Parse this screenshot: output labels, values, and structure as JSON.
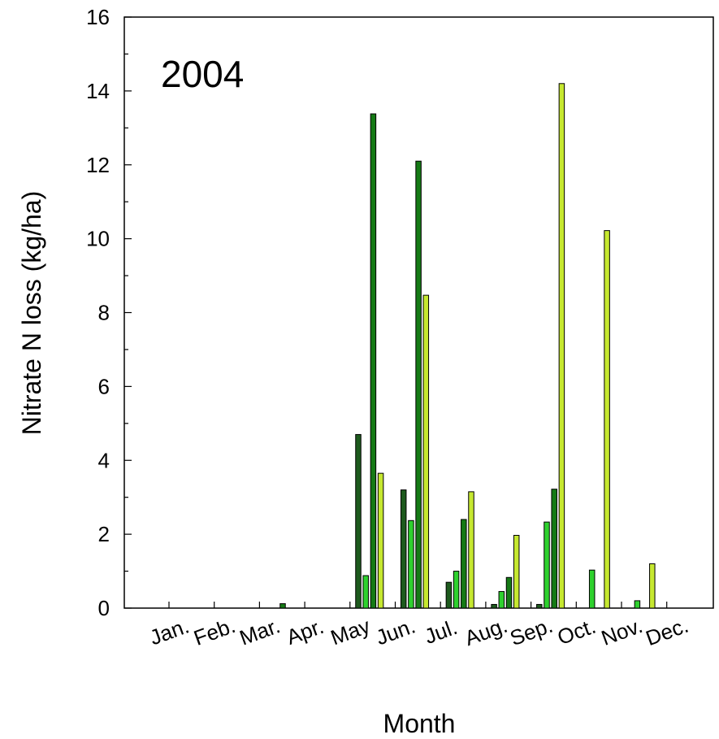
{
  "chart_data": {
    "type": "bar",
    "title": "",
    "annotation": "2004",
    "xlabel": "Month",
    "ylabel": "Nitrate N loss (kg/ha)",
    "ylim": [
      0,
      16
    ],
    "yticks": [
      "0",
      "2",
      "4",
      "6",
      "8",
      "10",
      "12",
      "14",
      "16"
    ],
    "categories": [
      "Jan.",
      "Feb.",
      "Mar.",
      "Apr.",
      "May",
      "Jun.",
      "Jul.",
      "Aug.",
      "Sep.",
      "Oct.",
      "Nov.",
      "Dec."
    ],
    "grid": false,
    "legend": "none",
    "series": [
      {
        "color": "#1d5a1d",
        "values": [
          0,
          0,
          0,
          0,
          4.7,
          3.2,
          0.7,
          0.1,
          0.1,
          0,
          0,
          0
        ]
      },
      {
        "color": "#2ed12e",
        "values": [
          0,
          0,
          0,
          0,
          0.88,
          2.37,
          1.0,
          0.45,
          2.33,
          1.03,
          0.2,
          0
        ]
      },
      {
        "color": "#157a15",
        "values": [
          0,
          0,
          0.12,
          0,
          13.38,
          12.1,
          2.4,
          0.83,
          3.22,
          0,
          0,
          0
        ]
      },
      {
        "color": "#c6e830",
        "values": [
          0,
          0,
          0,
          0,
          3.65,
          8.47,
          3.15,
          1.97,
          14.2,
          10.22,
          1.2,
          0
        ]
      }
    ]
  }
}
